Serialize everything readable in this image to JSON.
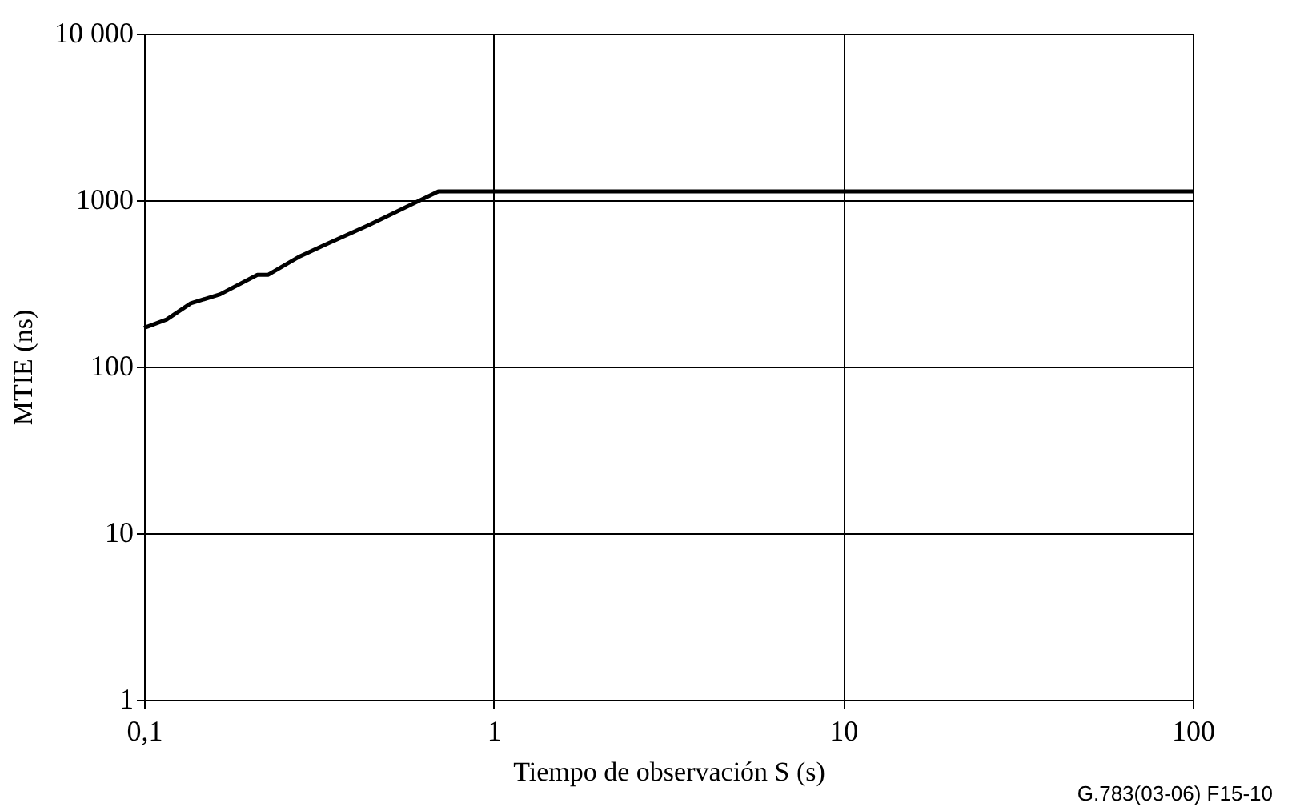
{
  "chart_data": {
    "type": "line",
    "xlabel": "Tiempo de observación S (s)",
    "ylabel": "MTIE (ns)",
    "log": "xy",
    "grid": true,
    "x": [
      0.1,
      0.116,
      0.136,
      0.165,
      0.211,
      0.226,
      0.279,
      0.333,
      0.44,
      0.695,
      100
    ],
    "series": [
      {
        "color": "#000000",
        "values": [
          171,
          192,
          240,
          272,
          356,
          356,
          460,
          546,
          710,
          1130,
          1130
        ]
      }
    ],
    "xlim": [
      0.1,
      100
    ],
    "xticks": [
      {
        "value": 0.1,
        "label": "0,1"
      },
      1,
      10,
      100
    ],
    "ylim": [
      1,
      10000
    ],
    "yticks": [
      1,
      10,
      100,
      1000,
      {
        "value": 10000,
        "label": "10 000"
      }
    ],
    "annotations": [
      "G.783(03-06) F15-10"
    ]
  }
}
